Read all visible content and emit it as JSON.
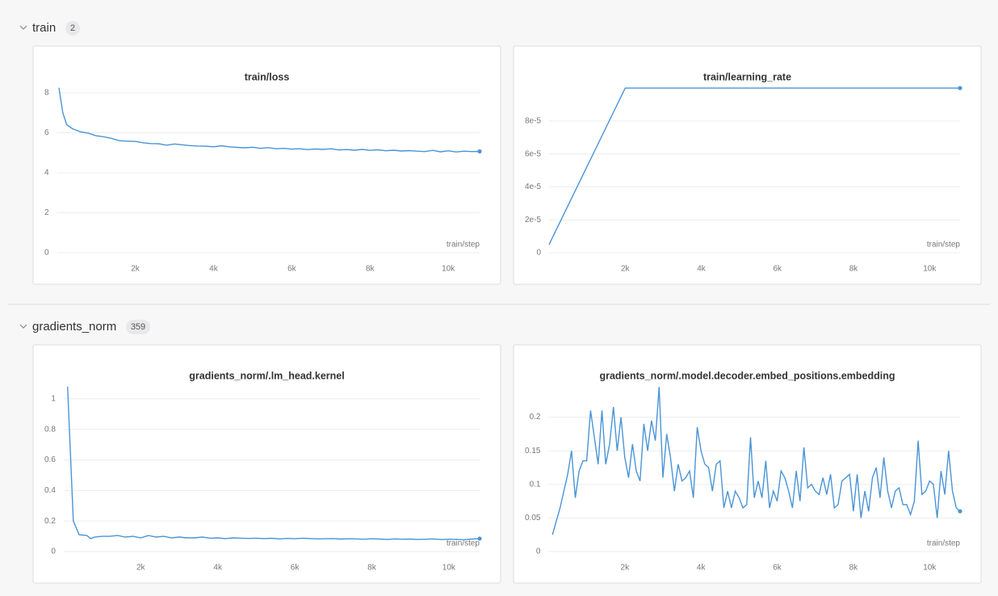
{
  "sections": [
    {
      "title": "train",
      "count": 2
    },
    {
      "title": "gradients_norm",
      "count": 359
    }
  ],
  "chart_data": [
    {
      "type": "line",
      "title": "train/loss",
      "x_label": "train/step",
      "color": "#4a94d6",
      "grid": true,
      "x": [
        50,
        150,
        250,
        400,
        600,
        800,
        1000,
        1200,
        1400,
        1600,
        1800,
        2000,
        2200,
        2400,
        2600,
        2800,
        3000,
        3200,
        3400,
        3600,
        3800,
        4000,
        4200,
        4400,
        4600,
        4800,
        5000,
        5200,
        5400,
        5600,
        5800,
        6000,
        6200,
        6400,
        6600,
        6800,
        7000,
        7200,
        7400,
        7600,
        7800,
        8000,
        8200,
        8400,
        8600,
        8800,
        9000,
        9200,
        9400,
        9600,
        9800,
        10000,
        10200,
        10400,
        10600,
        10800
      ],
      "values": [
        8.25,
        7.0,
        6.4,
        6.2,
        6.05,
        5.98,
        5.85,
        5.8,
        5.72,
        5.6,
        5.58,
        5.57,
        5.5,
        5.46,
        5.45,
        5.38,
        5.44,
        5.4,
        5.36,
        5.34,
        5.33,
        5.3,
        5.35,
        5.3,
        5.27,
        5.25,
        5.28,
        5.22,
        5.26,
        5.2,
        5.22,
        5.18,
        5.2,
        5.16,
        5.19,
        5.17,
        5.2,
        5.14,
        5.16,
        5.13,
        5.17,
        5.12,
        5.15,
        5.1,
        5.13,
        5.09,
        5.11,
        5.08,
        5.06,
        5.12,
        5.05,
        5.1,
        5.04,
        5.08,
        5.06,
        5.07
      ],
      "xlim": [
        0,
        10800
      ],
      "xticks": [
        {
          "value": 2000,
          "label": "2k"
        },
        {
          "value": 4000,
          "label": "4k"
        },
        {
          "value": 6000,
          "label": "6k"
        },
        {
          "value": 8000,
          "label": "8k"
        },
        {
          "value": 10000,
          "label": "10k"
        }
      ],
      "ylim": [
        0,
        8.4
      ],
      "yticks": [
        0,
        2,
        4,
        6,
        8
      ]
    },
    {
      "type": "line",
      "title": "train/learning_rate",
      "x_label": "train/step",
      "color": "#4a94d6",
      "grid": true,
      "x": [
        0,
        2000,
        10800
      ],
      "values": [
        5e-06,
        0.0001,
        0.0001
      ],
      "xlim": [
        0,
        10800
      ],
      "xticks": [
        {
          "value": 2000,
          "label": "2k"
        },
        {
          "value": 4000,
          "label": "4k"
        },
        {
          "value": 6000,
          "label": "6k"
        },
        {
          "value": 8000,
          "label": "8k"
        },
        {
          "value": 10000,
          "label": "10k"
        }
      ],
      "ylim": [
        0,
        0.000102
      ],
      "yticks": [
        0,
        {
          "value": 2e-05,
          "label": "2e-5"
        },
        {
          "value": 4e-05,
          "label": "4e-5"
        },
        {
          "value": 6e-05,
          "label": "6e-5"
        },
        {
          "value": 8e-05,
          "label": "8e-5"
        }
      ]
    },
    {
      "type": "line",
      "title": "gradients_norm/.lm_head.kernel",
      "x_label": "train/step",
      "color": "#4a94d6",
      "grid": true,
      "x": [
        100,
        250,
        400,
        600,
        700,
        800,
        1000,
        1200,
        1400,
        1600,
        1800,
        2000,
        2200,
        2400,
        2600,
        2800,
        3000,
        3200,
        3400,
        3600,
        3800,
        4000,
        4200,
        4400,
        4600,
        4800,
        5000,
        5200,
        5400,
        5600,
        5800,
        6000,
        6200,
        6400,
        6600,
        6800,
        7000,
        7200,
        7400,
        7600,
        7800,
        8000,
        8200,
        8400,
        8600,
        8800,
        9000,
        9200,
        9400,
        9600,
        9800,
        10000,
        10200,
        10400,
        10600,
        10800
      ],
      "values": [
        1.08,
        0.2,
        0.11,
        0.105,
        0.085,
        0.095,
        0.1,
        0.1,
        0.105,
        0.095,
        0.1,
        0.09,
        0.105,
        0.095,
        0.1,
        0.09,
        0.095,
        0.09,
        0.09,
        0.095,
        0.088,
        0.09,
        0.085,
        0.09,
        0.088,
        0.086,
        0.088,
        0.085,
        0.087,
        0.083,
        0.086,
        0.084,
        0.088,
        0.085,
        0.083,
        0.084,
        0.085,
        0.082,
        0.084,
        0.083,
        0.081,
        0.084,
        0.082,
        0.08,
        0.083,
        0.081,
        0.082,
        0.08,
        0.081,
        0.083,
        0.079,
        0.081,
        0.08,
        0.078,
        0.082,
        0.085
      ],
      "xlim": [
        0,
        10800
      ],
      "xticks": [
        {
          "value": 2000,
          "label": "2k"
        },
        {
          "value": 4000,
          "label": "4k"
        },
        {
          "value": 6000,
          "label": "6k"
        },
        {
          "value": 8000,
          "label": "8k"
        },
        {
          "value": 10000,
          "label": "10k"
        }
      ],
      "ylim": [
        0,
        1.1
      ],
      "yticks": [
        0,
        0.2,
        0.4,
        0.6,
        0.8,
        1
      ]
    },
    {
      "type": "line",
      "title": "gradients_norm/.model.decoder.embed_positions.embedding",
      "x_label": "train/step",
      "color": "#4a94d6",
      "grid": true,
      "x": [
        100,
        200,
        300,
        400,
        500,
        600,
        700,
        800,
        900,
        1000,
        1100,
        1200,
        1300,
        1400,
        1500,
        1600,
        1700,
        1800,
        1900,
        2000,
        2100,
        2200,
        2300,
        2400,
        2500,
        2600,
        2700,
        2800,
        2900,
        3000,
        3100,
        3200,
        3300,
        3400,
        3500,
        3600,
        3700,
        3800,
        3900,
        4000,
        4100,
        4200,
        4300,
        4400,
        4500,
        4600,
        4700,
        4800,
        4900,
        5000,
        5100,
        5200,
        5300,
        5400,
        5500,
        5600,
        5700,
        5800,
        5900,
        6000,
        6100,
        6200,
        6300,
        6400,
        6500,
        6600,
        6700,
        6800,
        6900,
        7000,
        7100,
        7200,
        7300,
        7400,
        7500,
        7600,
        7700,
        7800,
        7900,
        8000,
        8100,
        8200,
        8300,
        8400,
        8500,
        8600,
        8700,
        8800,
        8900,
        9000,
        9100,
        9200,
        9300,
        9400,
        9500,
        9600,
        9700,
        9800,
        9900,
        10000,
        10100,
        10200,
        10300,
        10400,
        10500,
        10600,
        10700,
        10800
      ],
      "values": [
        0.025,
        0.045,
        0.065,
        0.09,
        0.115,
        0.15,
        0.08,
        0.12,
        0.135,
        0.135,
        0.21,
        0.17,
        0.13,
        0.21,
        0.13,
        0.16,
        0.215,
        0.15,
        0.2,
        0.14,
        0.11,
        0.16,
        0.12,
        0.105,
        0.19,
        0.15,
        0.195,
        0.165,
        0.245,
        0.11,
        0.175,
        0.14,
        0.09,
        0.13,
        0.105,
        0.11,
        0.12,
        0.08,
        0.185,
        0.15,
        0.13,
        0.125,
        0.09,
        0.13,
        0.135,
        0.065,
        0.09,
        0.065,
        0.09,
        0.08,
        0.065,
        0.07,
        0.17,
        0.08,
        0.105,
        0.08,
        0.135,
        0.065,
        0.09,
        0.075,
        0.12,
        0.11,
        0.09,
        0.065,
        0.12,
        0.075,
        0.155,
        0.095,
        0.1,
        0.09,
        0.085,
        0.11,
        0.085,
        0.115,
        0.065,
        0.07,
        0.105,
        0.11,
        0.115,
        0.06,
        0.115,
        0.05,
        0.09,
        0.06,
        0.11,
        0.125,
        0.08,
        0.14,
        0.09,
        0.065,
        0.09,
        0.095,
        0.07,
        0.07,
        0.055,
        0.075,
        0.165,
        0.085,
        0.09,
        0.105,
        0.1,
        0.05,
        0.12,
        0.085,
        0.15,
        0.09,
        0.065,
        0.06
      ],
      "xlim": [
        0,
        10800
      ],
      "xticks": [
        {
          "value": 2000,
          "label": "2k"
        },
        {
          "value": 4000,
          "label": "4k"
        },
        {
          "value": 6000,
          "label": "6k"
        },
        {
          "value": 8000,
          "label": "8k"
        },
        {
          "value": 10000,
          "label": "10k"
        }
      ],
      "ylim": [
        0,
        0.25
      ],
      "yticks": [
        0,
        0.05,
        0.1,
        0.15,
        0.2
      ]
    }
  ]
}
